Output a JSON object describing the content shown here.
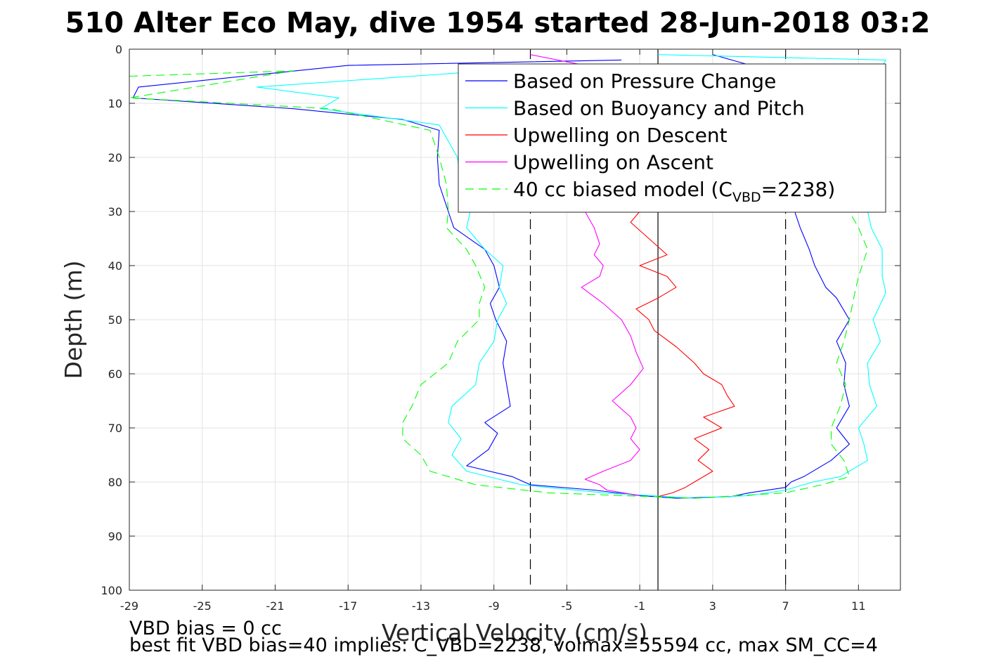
{
  "chart_data": {
    "type": "line",
    "title": "510 Alter Eco May, dive 1954 started 28-Jun-2018 03:2",
    "xlabel": "Vertical Velocity (cm/s)",
    "ylabel": "Depth (m)",
    "xlim": [
      -29,
      13.3
    ],
    "ylim": [
      0,
      100
    ],
    "y_reversed": true,
    "grid": true,
    "xticks": [
      -29,
      -25,
      -21,
      -17,
      -13,
      -9,
      -5,
      -1,
      3,
      7,
      11
    ],
    "yticks": [
      0,
      10,
      20,
      30,
      40,
      50,
      60,
      70,
      80,
      90,
      100
    ],
    "xtick_labels": [
      "-29",
      "-25",
      "-21",
      "-17",
      "-13",
      "-9",
      "-5",
      "-1",
      "3",
      "7",
      "11"
    ],
    "ytick_labels": [
      "0",
      "10",
      "20",
      "30",
      "40",
      "50",
      "60",
      "70",
      "80",
      "90",
      "100"
    ],
    "legend_position": "top-right",
    "reference_lines": [
      {
        "x": 0,
        "style": "solid",
        "color": "#000000"
      },
      {
        "x": -7,
        "style": "dashed",
        "color": "#000000"
      },
      {
        "x": 7,
        "style": "dashed",
        "color": "#000000"
      }
    ],
    "series": [
      {
        "name": "Based on Pressure Change",
        "color": "#0000ff",
        "dash": "none",
        "depth": [
          2,
          3,
          7,
          9,
          11,
          13,
          15,
          20,
          25,
          30,
          33,
          37,
          40,
          44,
          47,
          50,
          54,
          58,
          62,
          66,
          69,
          71,
          74,
          77,
          79,
          80.5,
          81.5,
          82.5,
          83,
          82.7,
          82,
          81,
          80,
          79,
          76,
          73,
          70,
          66,
          62,
          58,
          54,
          50,
          46,
          44,
          40,
          37,
          33,
          30,
          10,
          5,
          1
        ],
        "velocity": [
          -2,
          -17,
          -28.5,
          -28.8,
          -20,
          -14,
          -12,
          -12.1,
          -12,
          -11.5,
          -11.2,
          -9.5,
          -9,
          -8.7,
          -9.2,
          -8.9,
          -8.3,
          -8.5,
          -8.3,
          -8.1,
          -9.5,
          -8.8,
          -9.3,
          -10.5,
          -8,
          -7,
          -3.5,
          -1,
          1,
          4,
          5,
          7,
          7.3,
          8,
          9.5,
          10.5,
          9.8,
          10.5,
          10.2,
          10.3,
          9.8,
          10.5,
          9.8,
          9.2,
          8.6,
          8.3,
          7.8,
          7.5,
          7.5,
          7.2,
          3
        ]
      },
      {
        "name": "Based on Buoyancy and Pitch",
        "color": "#00ffff",
        "dash": "none",
        "depth": [
          3,
          7,
          9,
          11,
          14,
          20,
          25,
          30,
          33,
          37,
          40,
          44,
          47,
          50,
          54,
          58,
          62,
          66,
          69,
          72,
          75,
          78,
          80.5,
          82,
          83,
          82.5,
          81.5,
          80,
          79,
          76,
          73,
          70,
          66,
          62,
          58,
          54,
          50,
          45,
          42,
          37,
          33,
          30,
          20,
          15,
          10,
          5,
          2,
          1
        ],
        "velocity": [
          -5,
          -22,
          -17.5,
          -18.5,
          -12,
          -11,
          -10.8,
          -10.3,
          -10.5,
          -9.5,
          -8.5,
          -8.7,
          -8.3,
          -8.8,
          -9,
          -9.8,
          -10,
          -11.3,
          -11.5,
          -10.8,
          -11.3,
          -10.5,
          -7.5,
          -3,
          2,
          5,
          7,
          8.5,
          10,
          11.5,
          11.3,
          11,
          12,
          11.6,
          11.5,
          12.2,
          11.8,
          12.5,
          12.3,
          12.3,
          11.7,
          11.5,
          11.5,
          12,
          12,
          12,
          12.5,
          0
        ]
      },
      {
        "name": "Upwelling on Descent",
        "color": "#ff0000",
        "dash": "none",
        "depth": [
          9,
          30,
          32,
          35,
          38,
          40,
          42,
          44,
          46,
          48,
          50,
          52,
          55,
          58,
          60,
          62,
          64,
          66,
          68,
          70,
          72,
          74,
          76,
          78,
          80,
          81,
          82,
          82.7
        ],
        "velocity": [
          -1,
          -1,
          -1.5,
          -0.5,
          0.5,
          -1,
          0.5,
          1,
          0,
          -1.2,
          -0.5,
          -0.2,
          1,
          2,
          2.5,
          3.5,
          3.8,
          4.2,
          2.5,
          3.5,
          2,
          2.8,
          2.2,
          3,
          2,
          1.5,
          0.8,
          0
        ]
      },
      {
        "name": "Upwelling on Ascent",
        "color": "#ff00ff",
        "dash": "none",
        "depth": [
          1,
          3,
          30,
          33,
          36,
          38,
          40,
          42,
          44,
          47,
          50,
          53,
          56,
          59,
          62,
          65,
          68,
          70,
          72,
          74,
          76,
          78,
          79.5,
          80.5,
          81.5,
          82.5
        ],
        "velocity": [
          -7,
          -4,
          -4,
          -3.5,
          -3.2,
          -3.5,
          -3,
          -3.2,
          -4.2,
          -3,
          -2,
          -1.5,
          -1.2,
          -0.8,
          -1.5,
          -2.5,
          -1.5,
          -1.2,
          -1.5,
          -1,
          -1.5,
          -3,
          -4,
          -3.2,
          -2.8,
          -1
        ]
      },
      {
        "name": "40 cc biased model (C_VBD=2238)",
        "color": "#00ff00",
        "dash": "dashed",
        "depth": [
          5,
          4,
          9,
          11,
          15,
          20,
          25,
          30,
          33,
          37,
          40,
          44,
          47,
          50,
          54,
          58,
          62,
          66,
          69,
          72,
          75,
          78,
          80.5,
          82,
          83,
          82,
          80.5,
          79,
          76,
          73,
          70,
          66,
          62,
          58,
          54,
          50,
          45,
          42,
          37,
          33,
          30,
          20,
          15,
          12
        ],
        "velocity": [
          -29,
          -20,
          -29,
          -18,
          -12.5,
          -12,
          -11.6,
          -11.5,
          -11.6,
          -10.5,
          -10,
          -9.5,
          -9.8,
          -9.8,
          -11,
          -11.5,
          -13,
          -13.5,
          -14,
          -14,
          -13,
          -12.5,
          -10,
          -6,
          2,
          7,
          9,
          10.5,
          10.2,
          9.5,
          9.5,
          10,
          10.3,
          9.8,
          10.2,
          10.5,
          10.8,
          11,
          11.5,
          11,
          10.5,
          10.5,
          11,
          11
        ]
      }
    ],
    "legend": [
      {
        "label": "Based on Pressure Change",
        "color": "#0000ff",
        "dash": "none"
      },
      {
        "label": "Based on Buoyancy and Pitch",
        "color": "#00ffff",
        "dash": "none"
      },
      {
        "label": "Upwelling on Descent",
        "color": "#ff0000",
        "dash": "none"
      },
      {
        "label": "Upwelling on Ascent",
        "color": "#ff00ff",
        "dash": "none"
      },
      {
        "label": "40 cc biased model (C",
        "label_sub": "VBD",
        "label_tail": "=2238)",
        "color": "#00ff00",
        "dash": "dashed"
      }
    ],
    "annotations": [
      "VBD bias = 0 cc",
      "best fit VBD bias=40 implies: C_VBD=2238, volmax=55594 cc, max SM_CC=4"
    ]
  }
}
